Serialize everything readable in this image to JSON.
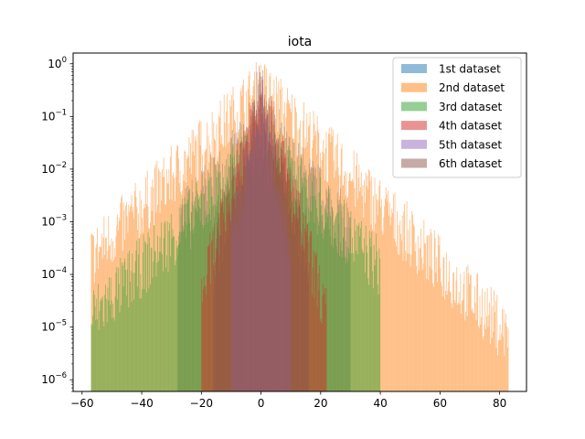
{
  "chart_data": {
    "type": "histogram",
    "title": "iota",
    "xlabel": "",
    "ylabel": "",
    "xlim": [
      -63,
      89
    ],
    "ylim": [
      6e-07,
      1.6
    ],
    "yscale": "log",
    "grid": false,
    "legend_position": "top-right",
    "xticks": [
      -60,
      -40,
      -20,
      0,
      20,
      40,
      60,
      80
    ],
    "xtick_labels": [
      "−60",
      "−40",
      "−20",
      "0",
      "20",
      "40",
      "60",
      "80"
    ],
    "yticks": [
      {
        "value": 1e-06,
        "base": "10",
        "exp": "−6"
      },
      {
        "value": 1e-05,
        "base": "10",
        "exp": "−5"
      },
      {
        "value": 0.0001,
        "base": "10",
        "exp": "−4"
      },
      {
        "value": 0.001,
        "base": "10",
        "exp": "−3"
      },
      {
        "value": 0.01,
        "base": "10",
        "exp": "−2"
      },
      {
        "value": 0.1,
        "base": "10",
        "exp": "−1"
      },
      {
        "value": 1,
        "base": "10",
        "exp": "0"
      }
    ],
    "series": [
      {
        "name": "1st dataset",
        "color": "#1f77b4",
        "xmin": -28,
        "xmax": 30,
        "peak": 0.12,
        "decay": 0.15,
        "floor": 1e-06
      },
      {
        "name": "2nd dataset",
        "color": "#ff7f0e",
        "xmin": -57,
        "xmax": 83,
        "peak": 0.7,
        "decay": 0.13,
        "floor": 1e-06
      },
      {
        "name": "3rd dataset",
        "color": "#2ca02c",
        "xmin": -57,
        "xmax": 40,
        "peak": 0.05,
        "decay": 0.13,
        "floor": 1e-06
      },
      {
        "name": "4th dataset",
        "color": "#d62728",
        "xmin": -20,
        "xmax": 22,
        "peak": 0.7,
        "decay": 0.45,
        "floor": 1e-06
      },
      {
        "name": "5th dataset",
        "color": "#9467bd",
        "xmin": -10,
        "xmax": 10,
        "peak": 0.3,
        "decay": 0.6,
        "floor": 1e-06
      },
      {
        "name": "6th dataset",
        "color": "#8c564b",
        "xmin": -16,
        "xmax": 16,
        "peak": 0.8,
        "decay": 0.5,
        "floor": 1e-06
      }
    ]
  }
}
